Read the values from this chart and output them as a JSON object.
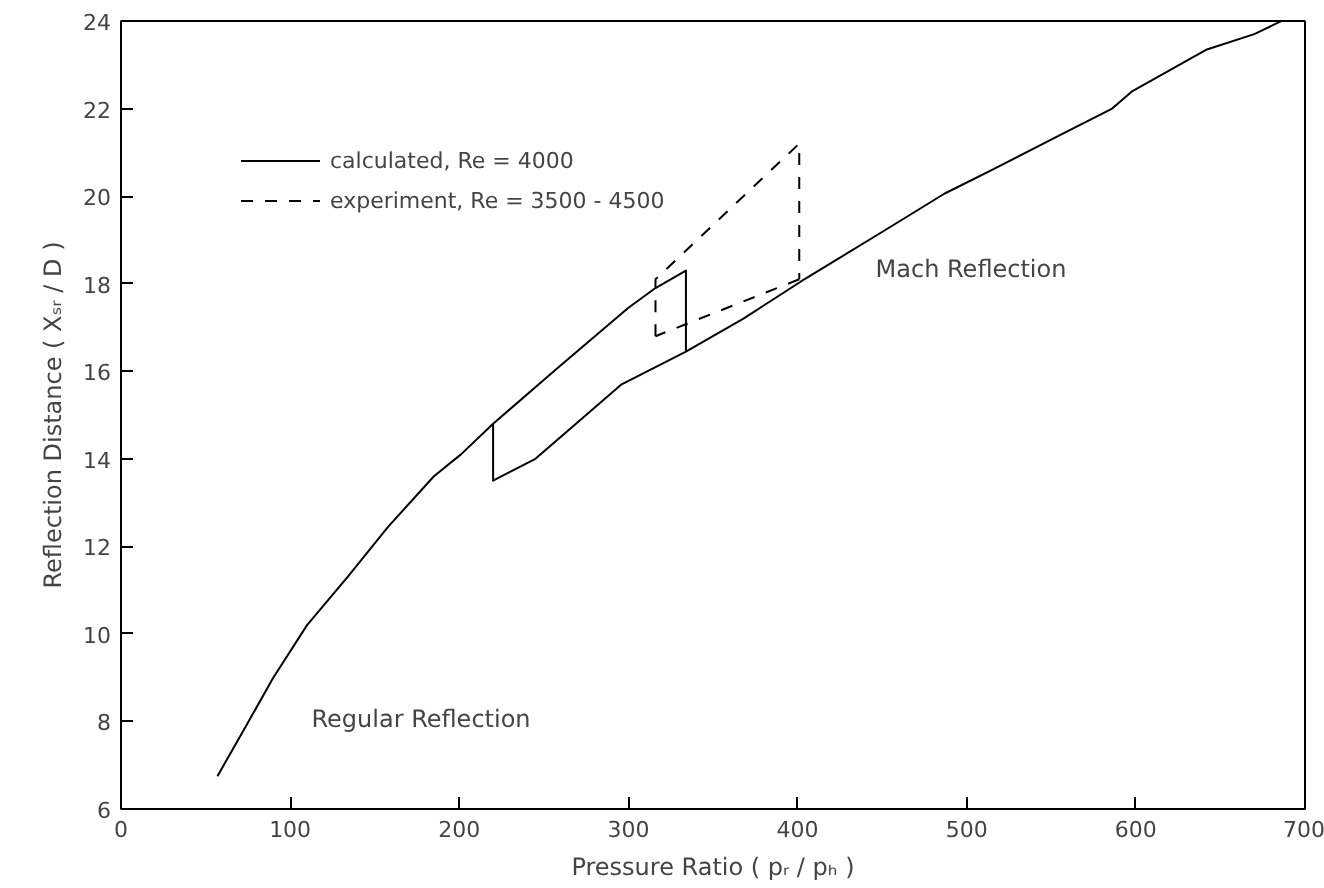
{
  "chart_data": {
    "type": "line",
    "xlabel": "Pressure Ratio ( pᵣ / pₕ )",
    "ylabel": "Reflection Distance ( Xₛᵣ / D )",
    "xlim": [
      0,
      700
    ],
    "xticks": [
      0,
      100,
      200,
      300,
      400,
      500,
      600,
      700
    ],
    "ylim": [
      6,
      24
    ],
    "yticks": [
      6,
      8,
      10,
      12,
      14,
      16,
      18,
      20,
      22,
      24
    ],
    "grid": false,
    "legend": "top left",
    "marker": "none",
    "series": [
      {
        "name": "calculated, Re = 4000",
        "color": "#000000",
        "line_style": "solid",
        "x": [
          57,
          74,
          90,
          110,
          134,
          158,
          185,
          201,
          220,
          259,
          300,
          316,
          334,
          334,
          368,
          402,
          455,
          487,
          515,
          558,
          586,
          598,
          642,
          670,
          686,
          300,
          220,
          220,
          245,
          269,
          296,
          334
        ],
        "values": [
          6.75,
          7.9,
          9.0,
          10.2,
          11.3,
          12.45,
          13.6,
          14.1,
          14.8,
          16.1,
          17.45,
          17.9,
          18.3,
          16.45,
          17.2,
          18.05,
          19.3,
          20.06,
          20.6,
          21.45,
          22.0,
          22.4,
          23.35,
          23.7,
          24.0,
          null,
          14.8,
          13.5,
          14.0,
          14.8,
          15.7,
          16.45
        ]
      },
      {
        "name": "experiment, Re = 3500 - 4500",
        "color": "#000000",
        "line_style": "dashed",
        "x": [
          316,
          316,
          401,
          401,
          null,
          401,
          316
        ],
        "values": [
          16.8,
          18.1,
          21.2,
          18.1,
          null,
          18.1,
          16.8
        ]
      }
    ],
    "annotations": [
      "Regular Reflection",
      "Mach Reflection"
    ]
  }
}
